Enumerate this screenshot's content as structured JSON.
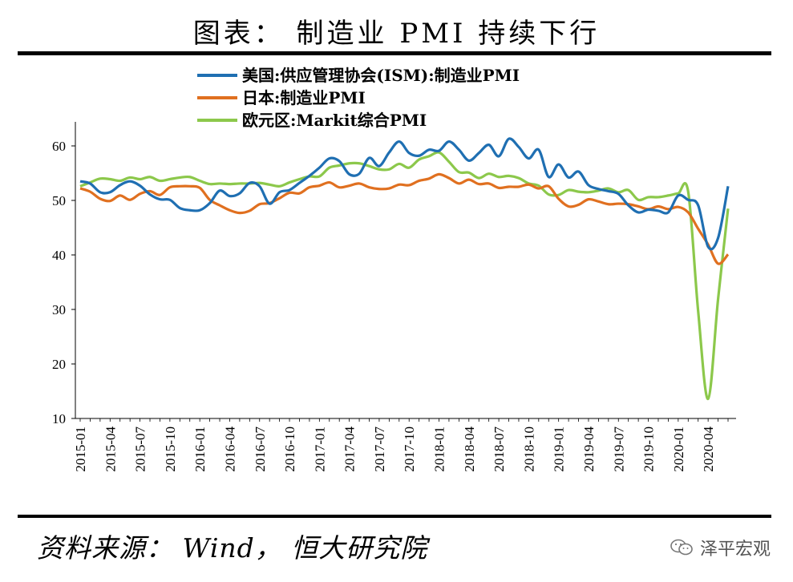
{
  "header": {
    "title": "图表： 制造业 PMI 持续下行"
  },
  "footer": {
    "source": "资料来源： Wind， 恒大研究院",
    "brand": "泽平宏观"
  },
  "colors": {
    "series_us": "#1f6fb2",
    "series_jp": "#e07020",
    "series_eu": "#8cc84b",
    "axis": "#000000"
  },
  "chart_data": {
    "type": "line",
    "title": "",
    "xlabel": "",
    "ylabel": "",
    "ylim": [
      10,
      60
    ],
    "yticks": [
      10,
      20,
      30,
      40,
      50,
      60
    ],
    "x_start": "2015-01",
    "xtick_labels": [
      "2015-01",
      "2015-04",
      "2015-07",
      "2015-10",
      "2016-01",
      "2016-04",
      "2016-07",
      "2016-10",
      "2017-01",
      "2017-04",
      "2017-07",
      "2017-10",
      "2018-01",
      "2018-04",
      "2018-07",
      "2018-10",
      "2019-01",
      "2019-04",
      "2019-07",
      "2019-10",
      "2020-01",
      "2020-04"
    ],
    "legend_position": "top-left",
    "grid": false,
    "series": [
      {
        "name": "美国:供应管理协会(ISM):制造业PMI",
        "color": "#1f6fb2",
        "values": [
          53.5,
          53.1,
          51.5,
          51.5,
          52.8,
          53.5,
          52.7,
          51.1,
          50.2,
          50.1,
          48.6,
          48.2,
          48.2,
          49.5,
          51.8,
          50.8,
          51.3,
          53.2,
          52.6,
          49.4,
          51.5,
          51.9,
          53.2,
          54.5,
          56.0,
          57.7,
          57.2,
          54.8,
          54.9,
          57.8,
          56.3,
          58.8,
          60.8,
          58.7,
          58.2,
          59.3,
          59.1,
          60.8,
          59.3,
          57.3,
          58.7,
          60.2,
          58.1,
          61.3,
          59.8,
          57.7,
          59.3,
          54.3,
          56.6,
          54.2,
          55.3,
          52.8,
          52.1,
          51.7,
          51.2,
          49.1,
          47.8,
          48.3,
          48.1,
          47.8,
          50.9,
          50.1,
          49.1,
          41.5,
          43.1,
          52.6
        ]
      },
      {
        "name": "日本:制造业PMI",
        "color": "#e07020",
        "values": [
          52.2,
          51.6,
          50.3,
          49.9,
          50.9,
          50.1,
          51.2,
          51.7,
          51.0,
          52.4,
          52.6,
          52.6,
          52.3,
          50.1,
          49.1,
          48.2,
          47.7,
          48.1,
          49.3,
          49.5,
          50.4,
          51.4,
          51.3,
          52.4,
          52.7,
          53.3,
          52.4,
          52.7,
          53.1,
          52.4,
          52.1,
          52.2,
          52.9,
          52.8,
          53.6,
          54.0,
          54.8,
          54.1,
          53.1,
          53.8,
          53.0,
          53.1,
          52.3,
          52.5,
          52.5,
          52.9,
          52.2,
          52.6,
          50.3,
          48.9,
          49.2,
          50.2,
          49.8,
          49.3,
          49.4,
          49.3,
          48.9,
          48.4,
          48.9,
          48.4,
          48.8,
          47.8,
          44.8,
          41.9,
          38.4,
          40.1
        ]
      },
      {
        "name": "欧元区:Markit综合PMI",
        "color": "#8cc84b",
        "values": [
          52.6,
          53.3,
          54.0,
          53.9,
          53.6,
          54.2,
          53.9,
          54.3,
          53.6,
          53.9,
          54.2,
          54.3,
          53.6,
          53.0,
          53.1,
          53.0,
          53.1,
          53.1,
          53.2,
          52.9,
          52.6,
          53.3,
          53.9,
          54.4,
          54.4,
          56.0,
          56.4,
          56.8,
          56.8,
          56.3,
          55.7,
          55.7,
          56.7,
          56.0,
          57.5,
          58.1,
          58.8,
          57.1,
          55.2,
          55.1,
          54.1,
          54.9,
          54.3,
          54.5,
          54.1,
          53.1,
          52.7,
          51.1,
          51.0,
          51.9,
          51.6,
          51.5,
          51.8,
          52.2,
          51.5,
          51.9,
          50.1,
          50.6,
          50.6,
          50.9,
          51.3,
          51.6,
          29.7,
          13.6,
          31.9,
          48.5
        ]
      }
    ]
  }
}
